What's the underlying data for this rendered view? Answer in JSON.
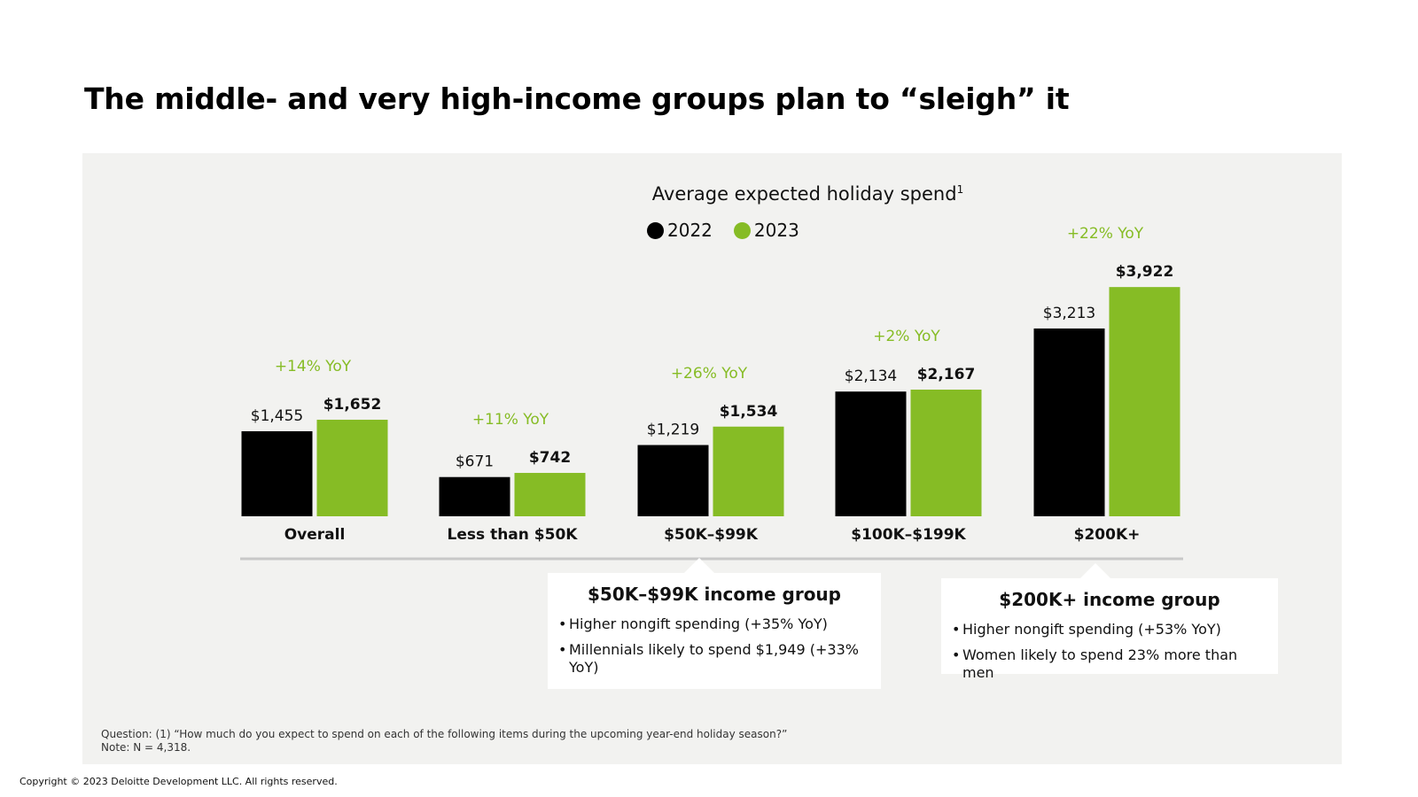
{
  "headline": "The middle- and very high-income groups plan to “sleigh” it",
  "chart_data": {
    "type": "bar",
    "title": "Average expected holiday spend",
    "title_footnote_marker": "1",
    "xlabel": "",
    "ylabel": "",
    "ylim": [
      0,
      4000
    ],
    "grid": false,
    "legend_position": "top-center",
    "categories": [
      "Overall",
      "Less than $50K",
      "$50K–$99K",
      "$100K–$199K",
      "$200K+"
    ],
    "series": [
      {
        "name": "2022",
        "color": "#000000",
        "values": [
          1455,
          671,
          1219,
          2134,
          3213
        ],
        "labels": [
          "$1,455",
          "$671",
          "$1,219",
          "$2,134",
          "$3,213"
        ]
      },
      {
        "name": "2023",
        "color": "#86bc25",
        "values": [
          1652,
          742,
          1534,
          2167,
          3922
        ],
        "labels": [
          "$1,652",
          "$742",
          "$1,534",
          "$2,167",
          "$3,922"
        ]
      }
    ],
    "annotations": [
      "+14% YoY",
      "+11% YoY",
      "+26% YoY",
      "+2% YoY",
      "+22% YoY"
    ],
    "annotation_color": "#86bc25"
  },
  "callouts": [
    {
      "title": "$50K–$99K income group",
      "bullets": [
        "Higher nongift spending (+35% YoY)",
        "Millennials likely to spend $1,949 (+33% YoY)"
      ]
    },
    {
      "title": "$200K+ income group",
      "bullets": [
        "Higher nongift spending (+53% YoY)",
        "Women likely to spend 23% more than men"
      ]
    }
  ],
  "footnote": {
    "question": "Question: (1) “How much do you expect to spend on each of the following items during the upcoming year-end holiday season?”",
    "note": "Note: N = 4,318."
  },
  "copyright": "Copyright © 2023 Deloitte Development LLC. All rights reserved.",
  "colors": {
    "panel_bg": "#f2f2f0",
    "series_2022": "#000000",
    "series_2023": "#86bc25",
    "axis": "#c8c8c8"
  }
}
